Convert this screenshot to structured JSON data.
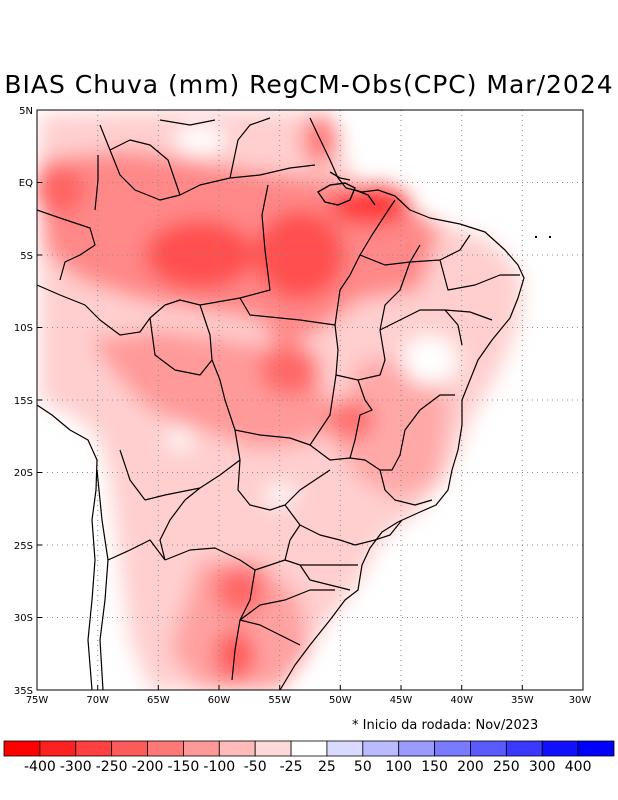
{
  "title": "BIAS Chuva (mm) RegCM-Obs(CPC) Mar/2024",
  "lat_labels": [
    "5N",
    "EQ",
    "5S",
    "10S",
    "15S",
    "20S",
    "25S",
    "30S",
    "35S"
  ],
  "lon_labels": [
    "75W",
    "70W",
    "65W",
    "60W",
    "55W",
    "50W",
    "45W",
    "40W",
    "35W",
    "30W"
  ],
  "note": "* Inicio da rodada: Nov/2023",
  "colorbar": {
    "labels": [
      "-400",
      "-300",
      "-250",
      "-200",
      "-150",
      "-100",
      "-50",
      "-25",
      "25",
      "50",
      "100",
      "150",
      "200",
      "250",
      "300",
      "400"
    ],
    "colors": [
      "#ff0000",
      "#ff2020",
      "#ff4040",
      "#ff5a5a",
      "#ff7878",
      "#ff9898",
      "#ffbaba",
      "#ffdada",
      "#ffffff",
      "#dadaff",
      "#babaff",
      "#9a9aff",
      "#7a7aff",
      "#5a5aff",
      "#3a3aff",
      "#1010ff",
      "#0000ff"
    ]
  }
}
